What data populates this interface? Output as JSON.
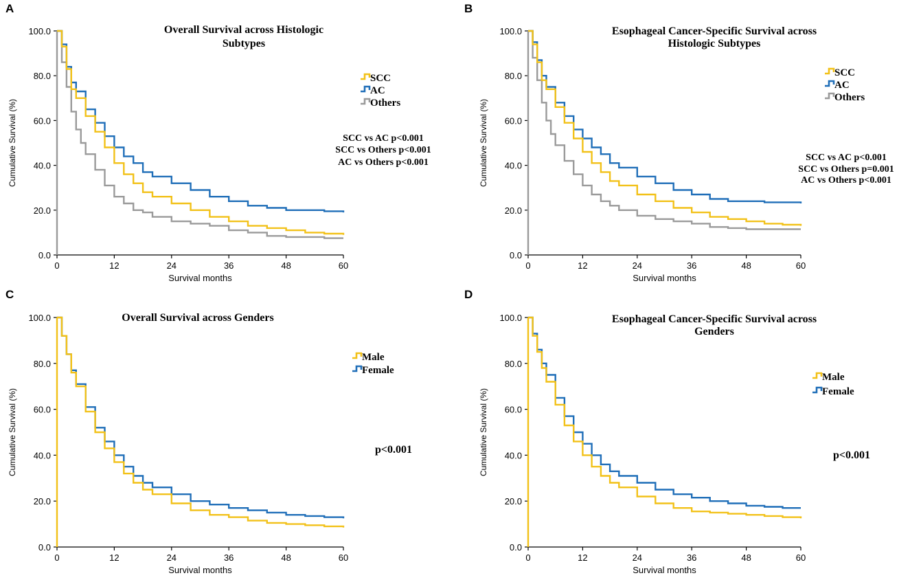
{
  "colors": {
    "SCC": "#F2C118",
    "AC": "#1F6EB8",
    "Others": "#9A9A9A",
    "Male": "#F2C118",
    "Female": "#1F6EB8"
  },
  "chart_data": [
    {
      "type": "line",
      "panel": "A",
      "title_lines": [
        "Overall Survival across Histologic",
        "Subtypes"
      ],
      "xlabel": "Survival months",
      "ylabel": "Cumulative Survival (%)",
      "xlim": [
        0,
        60
      ],
      "ylim": [
        0,
        100
      ],
      "xticks": [
        "0",
        "12",
        "24",
        "36",
        "48",
        "60"
      ],
      "yticks": [
        "0.0",
        "20.0",
        "40.0",
        "60.0",
        "80.0",
        "100.0"
      ],
      "legend": [
        "SCC",
        "AC",
        "Others"
      ],
      "annotations": [
        "SCC vs AC p<0.001",
        "SCC vs Others p<0.001",
        "AC vs Others p<0.001"
      ],
      "series": [
        {
          "name": "SCC",
          "x": [
            0,
            1,
            2,
            3,
            4,
            6,
            8,
            10,
            12,
            14,
            16,
            18,
            20,
            24,
            28,
            32,
            36,
            40,
            44,
            48,
            52,
            56,
            60
          ],
          "y": [
            100,
            93,
            83,
            74,
            70,
            62,
            55,
            48,
            41,
            36,
            32,
            28,
            26,
            23,
            20,
            17,
            15,
            13,
            12,
            11,
            10,
            9.5,
            9
          ]
        },
        {
          "name": "AC",
          "x": [
            0,
            1,
            2,
            3,
            4,
            6,
            8,
            10,
            12,
            14,
            16,
            18,
            20,
            24,
            28,
            32,
            36,
            40,
            44,
            48,
            52,
            56,
            60
          ],
          "y": [
            100,
            94,
            84,
            77,
            73,
            65,
            59,
            53,
            48,
            44,
            41,
            37,
            35,
            32,
            29,
            26,
            24,
            22,
            21,
            20,
            20,
            19.5,
            19
          ]
        },
        {
          "name": "Others",
          "x": [
            0,
            1,
            2,
            3,
            4,
            5,
            6,
            8,
            10,
            12,
            14,
            16,
            18,
            20,
            24,
            28,
            32,
            36,
            40,
            44,
            48,
            52,
            56,
            60
          ],
          "y": [
            100,
            86,
            75,
            64,
            56,
            50,
            45,
            38,
            31,
            26,
            23,
            20,
            19,
            17,
            15,
            14,
            13,
            11,
            10,
            8.5,
            8,
            8,
            7.5,
            7.5
          ]
        }
      ]
    },
    {
      "type": "line",
      "panel": "B",
      "title_lines": [
        "Esophageal Cancer-Specific Survival across",
        "Histologic Subtypes"
      ],
      "xlabel": "Survival months",
      "ylabel": "Cumulative Survival (%)",
      "xlim": [
        0,
        60
      ],
      "ylim": [
        0,
        100
      ],
      "xticks": [
        "0",
        "12",
        "24",
        "36",
        "48",
        "60"
      ],
      "yticks": [
        "0.0",
        "20.0",
        "40.0",
        "60.0",
        "80.0",
        "100.0"
      ],
      "legend": [
        "SCC",
        "AC",
        "Others"
      ],
      "annotations": [
        "SCC vs AC p<0.001",
        "SCC vs Others p=0.001",
        "AC vs Others p<0.001"
      ],
      "series": [
        {
          "name": "SCC",
          "x": [
            0,
            1,
            2,
            3,
            4,
            6,
            8,
            10,
            12,
            14,
            16,
            18,
            20,
            24,
            28,
            32,
            36,
            40,
            44,
            48,
            52,
            56,
            60
          ],
          "y": [
            100,
            94,
            86,
            78,
            74,
            66,
            59,
            52,
            46,
            41,
            37,
            33,
            31,
            27,
            24,
            21,
            19,
            17,
            16,
            15,
            14,
            13.5,
            13
          ]
        },
        {
          "name": "AC",
          "x": [
            0,
            1,
            2,
            3,
            4,
            6,
            8,
            10,
            12,
            14,
            16,
            18,
            20,
            24,
            28,
            32,
            36,
            40,
            44,
            48,
            52,
            56,
            60
          ],
          "y": [
            100,
            95,
            87,
            80,
            75,
            68,
            62,
            56,
            52,
            48,
            45,
            41,
            39,
            35,
            32,
            29,
            27,
            25,
            24,
            24,
            23.5,
            23.5,
            23
          ]
        },
        {
          "name": "Others",
          "x": [
            0,
            1,
            2,
            3,
            4,
            5,
            6,
            8,
            10,
            12,
            14,
            16,
            18,
            20,
            24,
            28,
            32,
            36,
            40,
            44,
            48,
            52,
            56,
            60
          ],
          "y": [
            100,
            88,
            78,
            68,
            60,
            54,
            49,
            42,
            36,
            31,
            27,
            24,
            22,
            20,
            17.5,
            16,
            15,
            14,
            12.5,
            12,
            11.5,
            11.5,
            11.5,
            11.5
          ]
        }
      ]
    },
    {
      "type": "line",
      "panel": "C",
      "title_lines": [
        "Overall Survival across Genders"
      ],
      "xlabel": "Survival months",
      "ylabel": "Cumulative Survival (%)",
      "xlim": [
        0,
        60
      ],
      "ylim": [
        0,
        100
      ],
      "xticks": [
        "0",
        "12",
        "24",
        "36",
        "48",
        "60"
      ],
      "yticks": [
        "0.0",
        "20.0",
        "40.0",
        "60.0",
        "80.0",
        "100.0"
      ],
      "legend": [
        "Male",
        "Female"
      ],
      "annotations": [
        "p<0.001"
      ],
      "series": [
        {
          "name": "Male",
          "x": [
            0,
            1,
            2,
            3,
            4,
            6,
            8,
            10,
            12,
            14,
            16,
            18,
            20,
            24,
            28,
            32,
            36,
            40,
            44,
            48,
            52,
            56,
            60
          ],
          "y": [
            100,
            92,
            84,
            76,
            70,
            59,
            50,
            43,
            37,
            32,
            28,
            25,
            23,
            19,
            16,
            14,
            13,
            11.5,
            10.5,
            10,
            9.5,
            9,
            8.5
          ]
        },
        {
          "name": "Female",
          "x": [
            0,
            1,
            2,
            3,
            4,
            6,
            8,
            10,
            12,
            14,
            16,
            18,
            20,
            24,
            28,
            32,
            36,
            40,
            44,
            48,
            52,
            56,
            60
          ],
          "y": [
            100,
            92,
            84,
            77,
            71,
            61,
            52,
            46,
            40,
            35,
            31,
            28,
            26,
            23,
            20,
            18.5,
            17,
            16,
            15,
            14,
            13.5,
            13,
            12.5
          ]
        }
      ]
    },
    {
      "type": "line",
      "panel": "D",
      "title_lines": [
        "Esophageal Cancer-Specific Survival across",
        "Genders"
      ],
      "xlabel": "Survival months",
      "ylabel": "Cumulative Survival (%)",
      "xlim": [
        0,
        60
      ],
      "ylim": [
        0,
        100
      ],
      "xticks": [
        "0",
        "12",
        "24",
        "36",
        "48",
        "60"
      ],
      "yticks": [
        "0.0",
        "20.0",
        "40.0",
        "60.0",
        "80.0",
        "100.0"
      ],
      "legend": [
        "Male",
        "Female"
      ],
      "annotations": [
        "p<0.001"
      ],
      "series": [
        {
          "name": "Male",
          "x": [
            0,
            1,
            2,
            3,
            4,
            6,
            8,
            10,
            12,
            14,
            16,
            18,
            20,
            24,
            28,
            32,
            36,
            40,
            44,
            48,
            52,
            56,
            60
          ],
          "y": [
            100,
            92,
            85,
            78,
            72,
            62,
            53,
            46,
            40,
            35,
            31,
            28,
            26,
            22,
            19,
            17,
            15.5,
            15,
            14.5,
            14,
            13.5,
            13,
            12.5
          ]
        },
        {
          "name": "Female",
          "x": [
            0,
            1,
            2,
            3,
            4,
            6,
            8,
            10,
            12,
            14,
            16,
            18,
            20,
            24,
            28,
            32,
            36,
            40,
            44,
            48,
            52,
            56,
            60
          ],
          "y": [
            100,
            93,
            86,
            80,
            75,
            65,
            57,
            50,
            45,
            40,
            36,
            33,
            31,
            28,
            25,
            23,
            21.5,
            20,
            19,
            18,
            17.5,
            17,
            17
          ]
        }
      ]
    }
  ]
}
